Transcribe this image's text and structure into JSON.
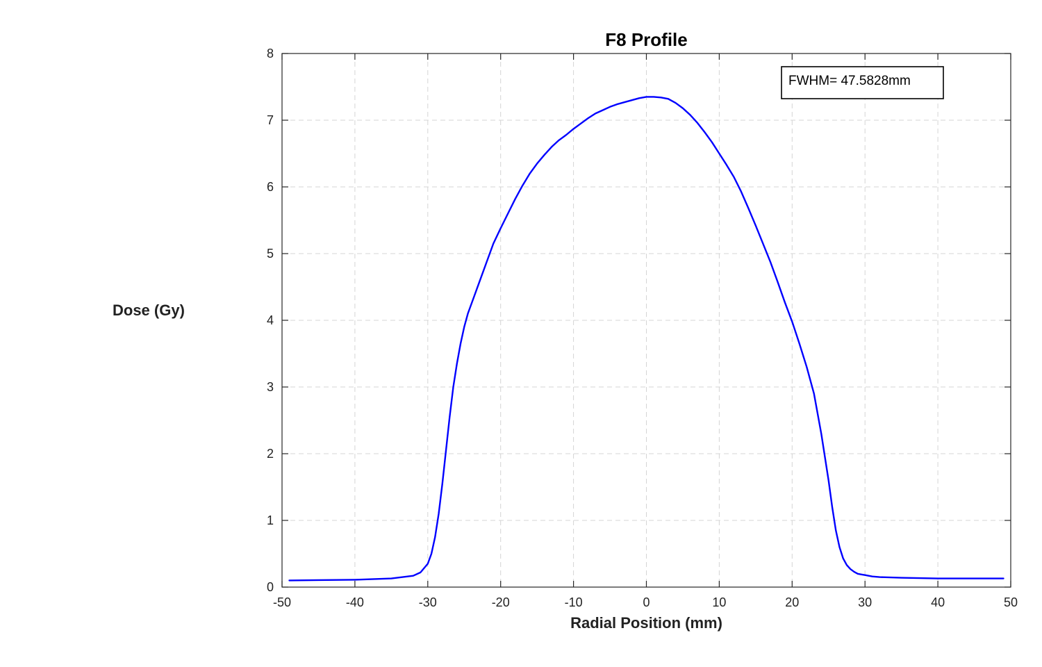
{
  "chart_data": {
    "type": "line",
    "title": "F8 Profile",
    "xlabel": "Radial Position (mm)",
    "ylabel": "Dose (Gy)",
    "xlim": [
      -50,
      50
    ],
    "ylim": [
      0,
      8
    ],
    "xticks": [
      -50,
      -40,
      -30,
      -20,
      -10,
      0,
      10,
      20,
      30,
      40,
      50
    ],
    "yticks": [
      0,
      1,
      2,
      3,
      4,
      5,
      6,
      7,
      8
    ],
    "grid": true,
    "annotation": "FWHM= 47.5828mm",
    "annotation_position": "top-right",
    "series": [
      {
        "name": "F8 profile",
        "color": "#0000ff",
        "x": [
          -49,
          -45,
          -40,
          -35,
          -32,
          -31,
          -30,
          -29.5,
          -29,
          -28.5,
          -28,
          -27.5,
          -27,
          -26.5,
          -26,
          -25.5,
          -25,
          -24.5,
          -24,
          -23.5,
          -23,
          -22,
          -21,
          -20,
          -19,
          -18,
          -17,
          -16,
          -15,
          -14,
          -13,
          -12,
          -11,
          -10,
          -9,
          -8,
          -7,
          -6,
          -5,
          -4,
          -3,
          -2,
          -1,
          0,
          1,
          2,
          3,
          4,
          5,
          6,
          7,
          8,
          9,
          10,
          11,
          12,
          13,
          14,
          15,
          16,
          17,
          18,
          19,
          20,
          21,
          22,
          23,
          24,
          25,
          25.5,
          26,
          26.5,
          27,
          27.5,
          28,
          28.5,
          29,
          29.5,
          30,
          31,
          32,
          35,
          40,
          45,
          49
        ],
        "y": [
          0.1,
          0.105,
          0.11,
          0.13,
          0.17,
          0.22,
          0.35,
          0.5,
          0.75,
          1.1,
          1.55,
          2.05,
          2.55,
          3.0,
          3.35,
          3.65,
          3.9,
          4.1,
          4.25,
          4.4,
          4.55,
          4.85,
          5.15,
          5.38,
          5.6,
          5.82,
          6.02,
          6.2,
          6.35,
          6.48,
          6.6,
          6.7,
          6.78,
          6.87,
          6.95,
          7.03,
          7.1,
          7.15,
          7.2,
          7.24,
          7.27,
          7.3,
          7.33,
          7.35,
          7.35,
          7.34,
          7.32,
          7.26,
          7.18,
          7.08,
          6.96,
          6.82,
          6.67,
          6.5,
          6.33,
          6.15,
          5.93,
          5.68,
          5.42,
          5.15,
          4.88,
          4.58,
          4.27,
          3.98,
          3.65,
          3.3,
          2.9,
          2.3,
          1.6,
          1.2,
          0.85,
          0.6,
          0.43,
          0.33,
          0.27,
          0.23,
          0.2,
          0.19,
          0.18,
          0.16,
          0.15,
          0.14,
          0.13,
          0.13,
          0.13
        ]
      }
    ]
  }
}
